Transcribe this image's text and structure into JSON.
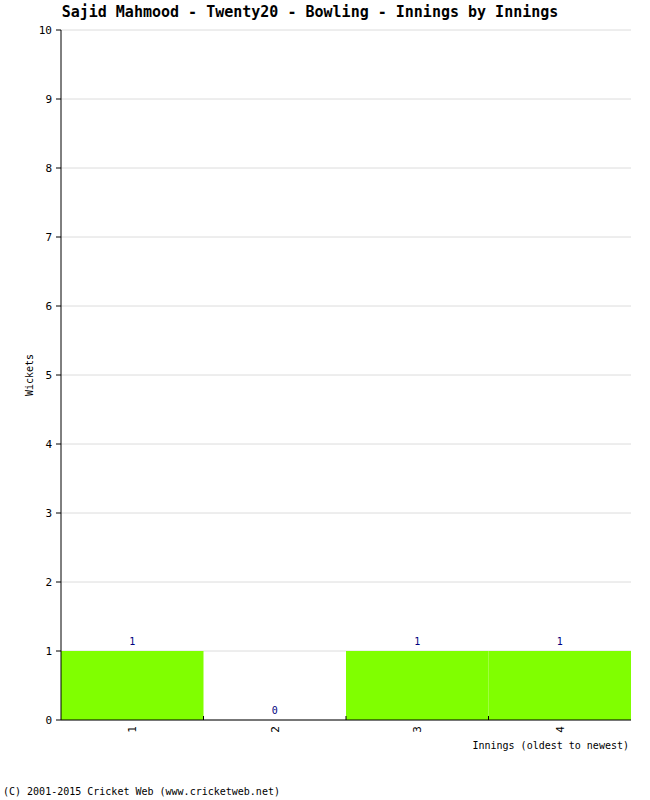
{
  "chart_data": {
    "type": "bar",
    "title": "Sajid Mahmood - Twenty20 - Bowling - Innings by Innings",
    "x_label": "Innings (oldest to newest)",
    "y_label": "Wickets",
    "categories": [
      "1",
      "2",
      "3",
      "4"
    ],
    "values": [
      1,
      0,
      1,
      1
    ],
    "color": "#80ff00",
    "ylim": [
      0,
      10
    ],
    "yticks": [
      0,
      1,
      2,
      3,
      4,
      5,
      6,
      7,
      8,
      9,
      10
    ],
    "grid": true,
    "data_labels": true,
    "annotations": [
      "(C) 2001-2015 Cricket Web (www.cricketweb.net)"
    ]
  }
}
